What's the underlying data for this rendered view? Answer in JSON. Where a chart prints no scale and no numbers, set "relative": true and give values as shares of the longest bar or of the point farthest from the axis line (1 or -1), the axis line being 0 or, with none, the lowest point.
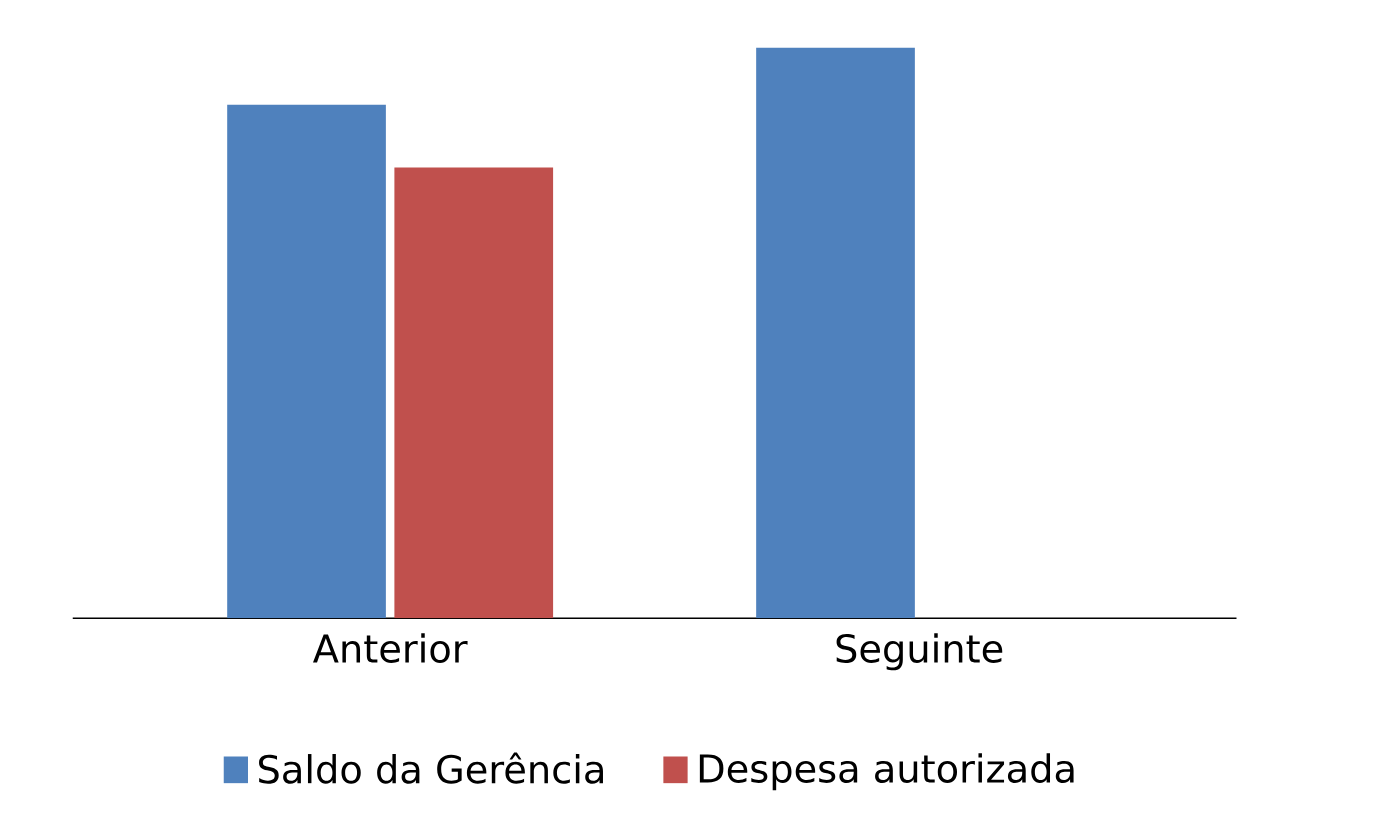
{
  "chart_data": {
    "type": "bar",
    "relative": true,
    "categories": [
      "Anterior",
      "Seguinte"
    ],
    "series": [
      {
        "name": "Saldo da Gerência",
        "color": "#4f81bd",
        "values": [
          0.9,
          1
        ]
      },
      {
        "name": "Despesa autorizada",
        "color": "#c0504d",
        "values": [
          0.79,
          null
        ]
      }
    ],
    "legend": "bottom"
  }
}
